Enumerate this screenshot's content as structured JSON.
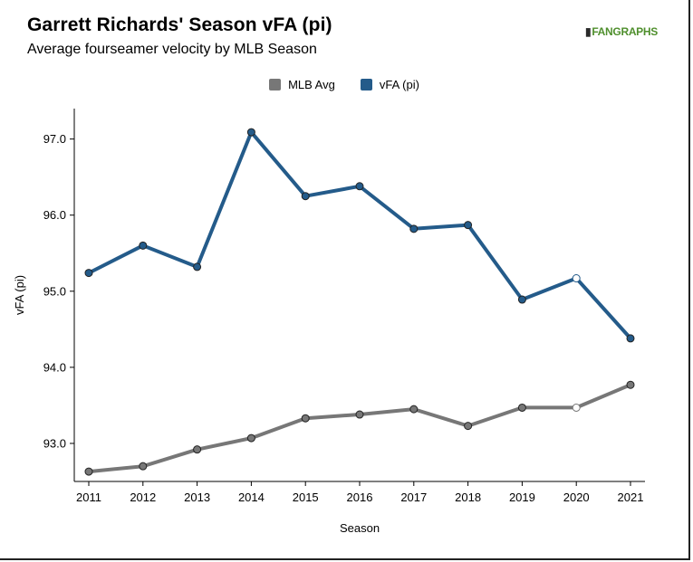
{
  "header": {
    "title": "Garrett Richards' Season vFA (pi)",
    "subtitle": "Average fourseamer velocity by MLB Season",
    "logo_text": "FANGRAPHS"
  },
  "chart_data": {
    "type": "line",
    "title": "Garrett Richards' Season vFA (pi)",
    "subtitle": "Average fourseamer velocity by MLB Season",
    "xlabel": "Season",
    "ylabel": "vFA (pi)",
    "x": [
      2011,
      2012,
      2013,
      2014,
      2015,
      2016,
      2017,
      2018,
      2019,
      2020,
      2021
    ],
    "x_tick_labels": [
      "2011",
      "2012",
      "2013",
      "2014",
      "2015",
      "2016",
      "2017",
      "2018",
      "2019",
      "2020",
      "2021"
    ],
    "y_ticks": [
      93.0,
      94.0,
      95.0,
      96.0,
      97.0
    ],
    "y_tick_labels": [
      "93.0",
      "94.0",
      "95.0",
      "96.0",
      "97.0"
    ],
    "ylim": [
      92.5,
      97.4
    ],
    "grid": false,
    "legend_position": "top-center",
    "hollow_marker_x": 2020,
    "series": [
      {
        "name": "MLB Avg",
        "color": "#777777",
        "values": [
          92.63,
          92.7,
          92.92,
          93.07,
          93.33,
          93.38,
          93.45,
          93.23,
          93.47,
          93.47,
          93.77
        ]
      },
      {
        "name": "vFA (pi)",
        "color": "#245b8a",
        "values": [
          95.24,
          95.6,
          95.32,
          97.09,
          96.25,
          96.38,
          95.82,
          95.87,
          94.89,
          95.17,
          94.38
        ]
      }
    ]
  }
}
